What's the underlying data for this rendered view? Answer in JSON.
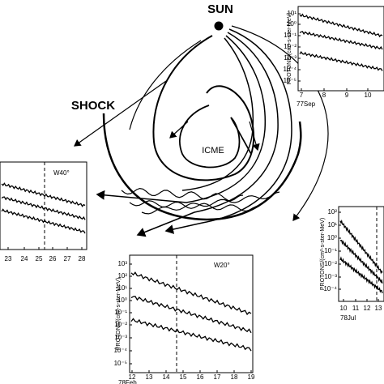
{
  "labels": {
    "sun": "SUN",
    "shock": "SHOCK",
    "icme": "ICME"
  },
  "panels": [
    {
      "y_label": "PROTONS/(cm²-s-ster-MeV)",
      "yticks": [
        "10¹",
        "10⁰",
        "10⁻¹",
        "10⁻²",
        "10⁻³",
        "10⁻⁴",
        "10⁻⁵"
      ],
      "xticks": [
        7,
        8,
        9,
        10
      ],
      "date": "77Sep"
    },
    {
      "angle": "W40°",
      "xticks": [
        23,
        24,
        25,
        26,
        27,
        28
      ]
    },
    {
      "y_label": "PROTONS/(cm²-s-ster-MeV)",
      "yticks": [
        "10³",
        "10²",
        "10¹",
        "10⁰",
        "10⁻¹",
        "10⁻²",
        "10⁻³",
        "10⁻⁴",
        "10⁻⁵"
      ],
      "xticks": [
        12,
        13,
        14,
        15,
        16,
        17,
        18,
        19
      ],
      "date": "78Feb",
      "angle": "W20°"
    },
    {
      "y_label": "PROTONS/(cm²-s-ster-MeV)",
      "yticks": [
        "10²",
        "10¹",
        "10⁰",
        "10⁻¹",
        "10⁻²",
        "10⁻³",
        "10⁻⁴"
      ],
      "xticks": [
        10,
        11,
        12,
        13
      ],
      "date": "78Jul"
    }
  ]
}
